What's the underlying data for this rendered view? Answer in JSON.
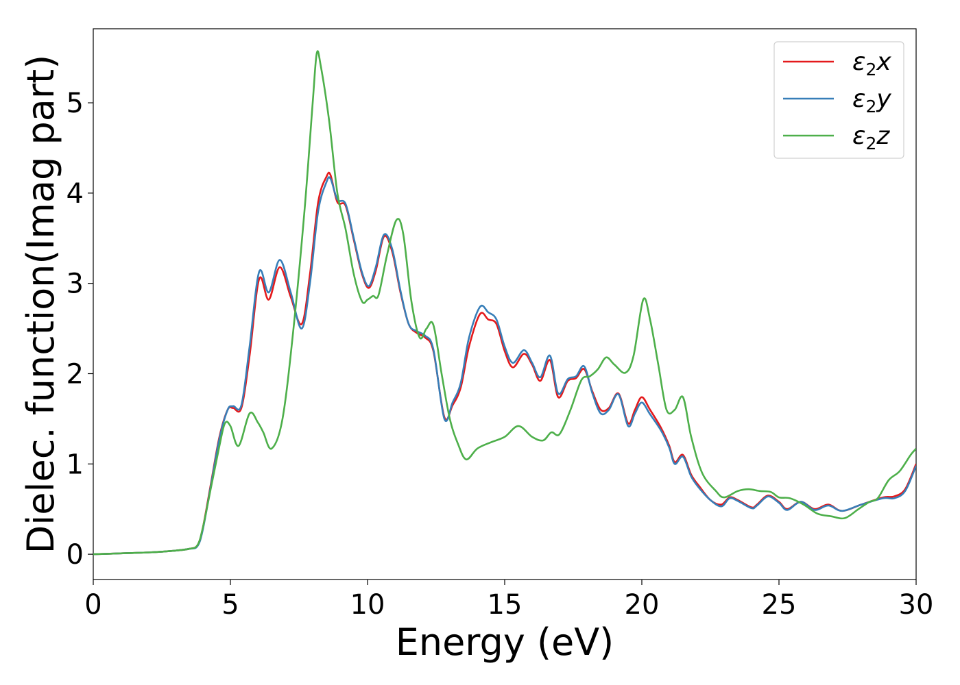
{
  "chart_data": {
    "type": "line",
    "title": "",
    "xlabel": "Energy (eV)",
    "ylabel": "Dielec. function(Imag part)",
    "xlim": [
      0,
      30
    ],
    "ylim": [
      -0.28,
      5.82
    ],
    "xticks": [
      0,
      5,
      10,
      15,
      20,
      25,
      30
    ],
    "yticks": [
      0,
      1,
      2,
      3,
      4,
      5
    ],
    "grid": false,
    "legend_position": "upper right",
    "series": [
      {
        "name": "ε₂x",
        "legend_main": "ε",
        "legend_sub": "2",
        "legend_suffix": "x",
        "color": "#e41a1c",
        "x": [
          0,
          1,
          2,
          3,
          3.5,
          3.8,
          4,
          4.3,
          4.6,
          4.9,
          5.1,
          5.4,
          5.7,
          6.05,
          6.4,
          6.8,
          7.2,
          7.6,
          7.9,
          8.2,
          8.5,
          8.65,
          8.9,
          9.2,
          9.5,
          9.8,
          10.05,
          10.3,
          10.6,
          10.9,
          11.2,
          11.5,
          11.8,
          12.1,
          12.4,
          12.8,
          13.1,
          13.4,
          13.7,
          14.1,
          14.4,
          14.7,
          15.0,
          15.3,
          15.7,
          16.0,
          16.3,
          16.65,
          16.95,
          17.3,
          17.6,
          17.9,
          18.2,
          18.5,
          18.8,
          19.15,
          19.5,
          19.75,
          20.0,
          20.3,
          20.7,
          21.0,
          21.2,
          21.5,
          21.8,
          22.1,
          22.5,
          22.9,
          23.2,
          23.5,
          24.0,
          24.2,
          24.6,
          25.0,
          25.3,
          25.8,
          26.3,
          26.8,
          27.3,
          28.0,
          28.8,
          29.2,
          29.6,
          30.0
        ],
        "y": [
          0.0,
          0.01,
          0.02,
          0.04,
          0.06,
          0.1,
          0.3,
          0.8,
          1.3,
          1.6,
          1.62,
          1.62,
          2.2,
          3.05,
          2.82,
          3.18,
          2.85,
          2.55,
          3.1,
          3.9,
          4.18,
          4.2,
          3.9,
          3.86,
          3.48,
          3.1,
          2.95,
          3.14,
          3.52,
          3.35,
          2.9,
          2.55,
          2.45,
          2.4,
          2.25,
          1.52,
          1.65,
          1.85,
          2.3,
          2.66,
          2.6,
          2.55,
          2.25,
          2.07,
          2.22,
          2.1,
          1.92,
          2.15,
          1.74,
          1.92,
          1.95,
          2.05,
          1.8,
          1.6,
          1.62,
          1.78,
          1.45,
          1.6,
          1.74,
          1.6,
          1.4,
          1.2,
          1.02,
          1.1,
          0.88,
          0.75,
          0.6,
          0.55,
          0.63,
          0.6,
          0.52,
          0.55,
          0.65,
          0.58,
          0.5,
          0.58,
          0.5,
          0.55,
          0.48,
          0.55,
          0.63,
          0.64,
          0.72,
          1.0
        ]
      },
      {
        "name": "ε₂y",
        "legend_main": "ε",
        "legend_sub": "2",
        "legend_suffix": "y",
        "color": "#377eb8",
        "x": [
          0,
          1,
          2,
          3,
          3.5,
          3.8,
          4,
          4.3,
          4.6,
          4.9,
          5.1,
          5.4,
          5.7,
          6.05,
          6.4,
          6.8,
          7.2,
          7.6,
          7.9,
          8.2,
          8.5,
          8.65,
          8.9,
          9.2,
          9.5,
          9.8,
          10.05,
          10.3,
          10.6,
          10.9,
          11.2,
          11.5,
          11.8,
          12.1,
          12.4,
          12.8,
          13.1,
          13.4,
          13.7,
          14.1,
          14.4,
          14.7,
          15.0,
          15.3,
          15.7,
          16.0,
          16.3,
          16.65,
          16.95,
          17.3,
          17.6,
          17.9,
          18.2,
          18.5,
          18.8,
          19.15,
          19.5,
          19.75,
          20.0,
          20.3,
          20.7,
          21.0,
          21.2,
          21.5,
          21.8,
          22.1,
          22.5,
          22.9,
          23.2,
          23.5,
          24.0,
          24.2,
          24.6,
          25.0,
          25.3,
          25.8,
          26.3,
          26.8,
          27.3,
          28.0,
          28.8,
          29.2,
          29.6,
          30.0
        ],
        "y": [
          0.0,
          0.01,
          0.02,
          0.04,
          0.06,
          0.09,
          0.28,
          0.78,
          1.28,
          1.6,
          1.64,
          1.65,
          2.3,
          3.13,
          2.9,
          3.26,
          2.9,
          2.5,
          3.0,
          3.8,
          4.12,
          4.16,
          3.93,
          3.88,
          3.5,
          3.12,
          2.97,
          3.18,
          3.54,
          3.38,
          2.92,
          2.55,
          2.47,
          2.42,
          2.27,
          1.5,
          1.68,
          1.9,
          2.4,
          2.74,
          2.68,
          2.6,
          2.3,
          2.12,
          2.26,
          2.12,
          1.96,
          2.2,
          1.78,
          1.94,
          1.97,
          2.08,
          1.78,
          1.56,
          1.6,
          1.77,
          1.42,
          1.56,
          1.68,
          1.55,
          1.37,
          1.18,
          1.0,
          1.08,
          0.86,
          0.73,
          0.6,
          0.53,
          0.62,
          0.59,
          0.51,
          0.54,
          0.64,
          0.57,
          0.49,
          0.58,
          0.49,
          0.54,
          0.48,
          0.55,
          0.62,
          0.62,
          0.7,
          0.98
        ]
      },
      {
        "name": "ε₂z",
        "legend_main": "ε",
        "legend_sub": "2",
        "legend_suffix": "z",
        "color": "#4daf4a",
        "x": [
          0,
          1,
          2,
          3,
          3.5,
          3.8,
          4,
          4.3,
          4.6,
          4.8,
          5.0,
          5.3,
          5.7,
          6.0,
          6.2,
          6.5,
          6.9,
          7.3,
          7.7,
          8.0,
          8.15,
          8.3,
          8.6,
          8.9,
          9.2,
          9.5,
          9.8,
          10.0,
          10.2,
          10.4,
          10.7,
          11.05,
          11.3,
          11.6,
          11.9,
          12.15,
          12.4,
          12.7,
          13.0,
          13.3,
          13.6,
          14.0,
          14.5,
          15.0,
          15.5,
          16.0,
          16.4,
          16.7,
          17.0,
          17.4,
          17.8,
          18.1,
          18.4,
          18.7,
          19.0,
          19.4,
          19.7,
          20.05,
          20.3,
          20.6,
          20.9,
          21.2,
          21.5,
          21.8,
          22.2,
          22.7,
          23.0,
          23.5,
          23.9,
          24.3,
          24.7,
          25.0,
          25.4,
          25.9,
          26.4,
          26.9,
          27.4,
          27.9,
          28.3,
          28.6,
          29.0,
          29.4,
          29.8,
          30.0
        ],
        "y": [
          0.0,
          0.01,
          0.02,
          0.04,
          0.06,
          0.1,
          0.3,
          0.75,
          1.2,
          1.45,
          1.42,
          1.2,
          1.56,
          1.46,
          1.35,
          1.17,
          1.5,
          2.5,
          3.8,
          5.0,
          5.55,
          5.4,
          4.8,
          4.0,
          3.6,
          3.1,
          2.8,
          2.82,
          2.86,
          2.87,
          3.3,
          3.7,
          3.55,
          2.8,
          2.4,
          2.5,
          2.54,
          2.0,
          1.5,
          1.22,
          1.05,
          1.17,
          1.24,
          1.3,
          1.42,
          1.3,
          1.26,
          1.35,
          1.33,
          1.6,
          1.93,
          1.97,
          2.05,
          2.18,
          2.1,
          2.01,
          2.2,
          2.82,
          2.6,
          2.1,
          1.6,
          1.6,
          1.74,
          1.3,
          0.9,
          0.7,
          0.63,
          0.7,
          0.72,
          0.7,
          0.69,
          0.63,
          0.62,
          0.55,
          0.45,
          0.42,
          0.4,
          0.5,
          0.58,
          0.62,
          0.82,
          0.92,
          1.1,
          1.17
        ]
      }
    ]
  }
}
